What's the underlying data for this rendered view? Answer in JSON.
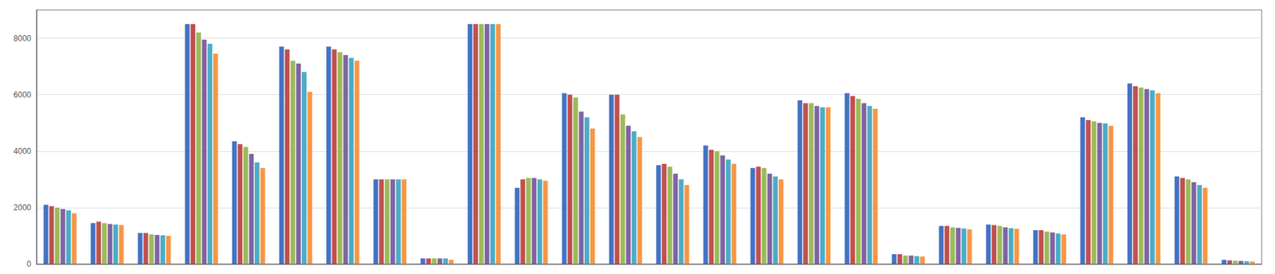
{
  "chart_data": {
    "type": "bar",
    "categories": [
      null,
      null,
      null,
      null,
      null,
      null,
      null,
      null,
      null,
      null,
      null,
      null,
      null,
      null,
      null,
      null,
      null,
      null,
      null,
      null,
      null,
      null,
      null,
      null,
      null,
      null
    ],
    "series": [
      {
        "color": "#4472C4",
        "values": [
          2100,
          1450,
          1100,
          8500,
          4350,
          7700,
          7700,
          3000,
          200,
          8500,
          2700,
          6050,
          6000,
          3500,
          4200,
          3400,
          5800,
          6050,
          350,
          1350,
          1400,
          1200,
          5200,
          6400,
          3100,
          150
        ]
      },
      {
        "color": "#C0504D",
        "values": [
          2050,
          1500,
          1100,
          8500,
          4250,
          7600,
          7600,
          3000,
          200,
          8500,
          3000,
          6000,
          6000,
          3550,
          4050,
          3450,
          5700,
          5950,
          350,
          1350,
          1380,
          1200,
          5100,
          6300,
          3050,
          130
        ]
      },
      {
        "color": "#9BBB59",
        "values": [
          2000,
          1450,
          1050,
          8200,
          4150,
          7200,
          7500,
          3000,
          200,
          8500,
          3050,
          5900,
          5300,
          3450,
          4000,
          3400,
          5700,
          5850,
          300,
          1300,
          1350,
          1150,
          5050,
          6250,
          3000,
          120
        ]
      },
      {
        "color": "#8064A2",
        "values": [
          1950,
          1420,
          1030,
          7950,
          3900,
          7100,
          7400,
          3000,
          200,
          8500,
          3050,
          5400,
          4900,
          3200,
          3850,
          3200,
          5600,
          5700,
          300,
          1280,
          1300,
          1120,
          5000,
          6200,
          2900,
          110
        ]
      },
      {
        "color": "#4BACC6",
        "values": [
          1900,
          1400,
          1020,
          7800,
          3600,
          6800,
          7300,
          3000,
          200,
          8500,
          3000,
          5200,
          4700,
          3000,
          3700,
          3100,
          5550,
          5600,
          280,
          1260,
          1270,
          1080,
          4980,
          6150,
          2800,
          100
        ]
      },
      {
        "color": "#F79646",
        "values": [
          1800,
          1380,
          1000,
          7450,
          3400,
          6100,
          7200,
          3000,
          150,
          8500,
          2950,
          4800,
          4500,
          2800,
          3550,
          3000,
          5550,
          5500,
          270,
          1230,
          1250,
          1050,
          4900,
          6050,
          2700,
          90
        ]
      }
    ],
    "ylim": [
      0,
      9000
    ],
    "yticks": [
      0,
      2000,
      4000,
      6000,
      8000
    ],
    "grid": true,
    "tick_labels": "y"
  }
}
